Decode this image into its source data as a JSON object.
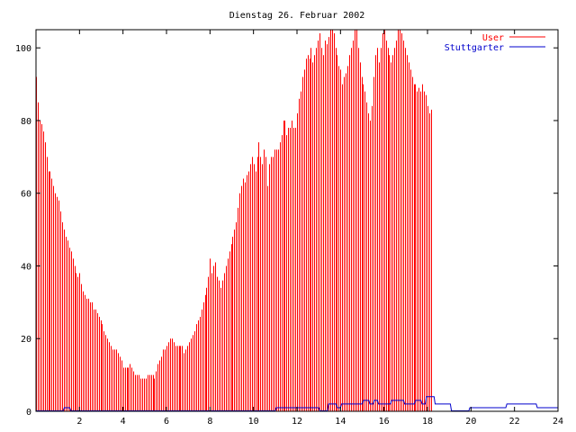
{
  "chart_data": {
    "type": "bar",
    "title": "Dienstag 26. Februar 2002",
    "xlabel": "",
    "ylabel": "",
    "xlim": [
      0,
      24
    ],
    "ylim": [
      0,
      105
    ],
    "x_ticks": [
      2,
      4,
      6,
      8,
      10,
      12,
      14,
      16,
      18,
      20,
      22,
      24
    ],
    "y_ticks": [
      0,
      20,
      40,
      60,
      80,
      100
    ],
    "grid": false,
    "legend_position": "top-right",
    "series": [
      {
        "name": "User",
        "type": "bar",
        "color": "#ff0000",
        "x_start": 0,
        "x_step": 0.08,
        "values": [
          92,
          85,
          80,
          79,
          77,
          74,
          70,
          66,
          66,
          64,
          62,
          60,
          59,
          58,
          55,
          52,
          50,
          48,
          47,
          45,
          44,
          42,
          40,
          38,
          37,
          38,
          35,
          33,
          32,
          31,
          31,
          30,
          30,
          28,
          28,
          27,
          26,
          25,
          24,
          22,
          21,
          20,
          19,
          18,
          17,
          17,
          17,
          16,
          15,
          14,
          12,
          12,
          12,
          12,
          13,
          12,
          11,
          10,
          10,
          10,
          9,
          9,
          9,
          9,
          10,
          10,
          10,
          10,
          9,
          11,
          13,
          14,
          15,
          17,
          17,
          18,
          19,
          20,
          20,
          19,
          18,
          18,
          18,
          18,
          18,
          16,
          17,
          18,
          19,
          20,
          21,
          22,
          24,
          25,
          26,
          28,
          30,
          32,
          34,
          37,
          42,
          38,
          40,
          41,
          37,
          36,
          34,
          36,
          38,
          40,
          42,
          44,
          46,
          48,
          50,
          52,
          56,
          60,
          62,
          64,
          63,
          65,
          66,
          68,
          70,
          68,
          66,
          70,
          74,
          70,
          68,
          72,
          70,
          62,
          68,
          70,
          70,
          72,
          72,
          72,
          74,
          76,
          80,
          80,
          76,
          78,
          78,
          80,
          78,
          78,
          82,
          86,
          88,
          92,
          94,
          97,
          98,
          97,
          100,
          96,
          98,
          100,
          102,
          104,
          100,
          98,
          102,
          101,
          103,
          105,
          107,
          104,
          100,
          98,
          95,
          94,
          90,
          92,
          93,
          95,
          98,
          100,
          102,
          106,
          105,
          100,
          96,
          92,
          90,
          88,
          85,
          82,
          80,
          84,
          92,
          98,
          100,
          96,
          100,
          104,
          105,
          102,
          100,
          98,
          96,
          98,
          100,
          102,
          105,
          108,
          104,
          102,
          100,
          98,
          96,
          94,
          92,
          90,
          90,
          88,
          89,
          88,
          90,
          88,
          87,
          84,
          82,
          83
        ]
      },
      {
        "name": "Stuttgarter",
        "type": "line",
        "color": "#0000cc",
        "points": [
          [
            0,
            0
          ],
          [
            1.25,
            0
          ],
          [
            1.3,
            1
          ],
          [
            1.55,
            1
          ],
          [
            1.6,
            0
          ],
          [
            11.0,
            0
          ],
          [
            11.05,
            1
          ],
          [
            13.0,
            1
          ],
          [
            13.05,
            0
          ],
          [
            13.4,
            0
          ],
          [
            13.45,
            2
          ],
          [
            13.8,
            2
          ],
          [
            13.85,
            1
          ],
          [
            14.0,
            1
          ],
          [
            14.05,
            2
          ],
          [
            15.0,
            2
          ],
          [
            15.05,
            3
          ],
          [
            15.3,
            3
          ],
          [
            15.35,
            2
          ],
          [
            15.5,
            2
          ],
          [
            15.55,
            3
          ],
          [
            15.7,
            3
          ],
          [
            15.75,
            2
          ],
          [
            16.3,
            2
          ],
          [
            16.35,
            3
          ],
          [
            16.9,
            3
          ],
          [
            16.95,
            2
          ],
          [
            17.4,
            2
          ],
          [
            17.45,
            3
          ],
          [
            17.7,
            3
          ],
          [
            17.75,
            2
          ],
          [
            17.9,
            2
          ],
          [
            17.95,
            4
          ],
          [
            18.3,
            4
          ],
          [
            18.35,
            2
          ],
          [
            19.05,
            2
          ],
          [
            19.1,
            0
          ],
          [
            19.9,
            0
          ],
          [
            19.95,
            1
          ],
          [
            21.6,
            1
          ],
          [
            21.65,
            2
          ],
          [
            23.0,
            2
          ],
          [
            23.05,
            1
          ],
          [
            24.0,
            1
          ]
        ]
      }
    ]
  }
}
